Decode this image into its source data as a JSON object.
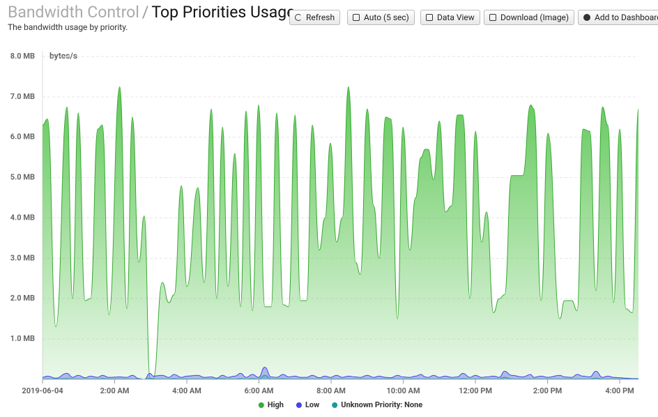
{
  "header": {
    "parent": "Bandwidth Control",
    "separator": "/",
    "title": "Top Priorities Usage",
    "subtitle": "The bandwidth usage by priority."
  },
  "buttons": [
    "Refresh",
    "Auto (5 sec)",
    "Data View",
    "Download (Image)",
    "Add to Dashboard"
  ],
  "chart_data": {
    "type": "area",
    "y_label": "bytes/s",
    "x": [
      0,
      0.14,
      0.37,
      0.68,
      0.83,
      0.99,
      1.18,
      1.33,
      1.53,
      1.66,
      1.84,
      2.14,
      2.34,
      2.49,
      2.67,
      2.82,
      2.98,
      3.07,
      3.32,
      3.5,
      3.65,
      3.85,
      4.0,
      4.31,
      4.48,
      4.68,
      4.83,
      4.99,
      5.14,
      5.33,
      5.49,
      5.64,
      5.82,
      5.99,
      6.16,
      6.34,
      6.49,
      6.67,
      6.82,
      7.0,
      7.15,
      7.32,
      7.48,
      7.67,
      7.83,
      7.98,
      8.15,
      8.31,
      8.48,
      8.68,
      8.81,
      9.0,
      9.18,
      9.33,
      9.51,
      9.66,
      9.84,
      9.99,
      10.18,
      10.34,
      10.49,
      10.61,
      10.69,
      10.84,
      11.0,
      11.17,
      11.34,
      11.5,
      11.65,
      11.85,
      12.0,
      12.17,
      12.31,
      12.5,
      12.66,
      12.81,
      13.0,
      13.31,
      13.53,
      13.62,
      13.82,
      14.01,
      14.34,
      14.47,
      14.67,
      14.82,
      14.98,
      15.17,
      15.34,
      15.52,
      15.67,
      15.83,
      16.0,
      16.17,
      16.35,
      16.52
    ],
    "series": [
      {
        "name": "High",
        "color": "#3aaa35",
        "values": [
          6.3,
          6.45,
          1.3,
          6.75,
          2.0,
          6.6,
          1.95,
          2.0,
          6.2,
          6.3,
          1.6,
          7.25,
          1.75,
          6.5,
          2.9,
          4.05,
          0.02,
          0.02,
          2.4,
          1.9,
          2.1,
          4.8,
          2.3,
          4.75,
          2.4,
          6.7,
          2.0,
          6.25,
          2.3,
          5.6,
          1.8,
          6.65,
          1.7,
          6.8,
          1.8,
          1.8,
          6.6,
          1.85,
          1.8,
          6.55,
          1.95,
          1.95,
          6.3,
          3.2,
          4.0,
          5.85,
          3.4,
          4.0,
          7.25,
          2.9,
          2.6,
          6.7,
          4.3,
          3.0,
          6.5,
          6.45,
          1.5,
          6.25,
          3.2,
          4.5,
          5.5,
          5.7,
          5.7,
          4.95,
          6.4,
          4.15,
          4.3,
          6.55,
          6.55,
          2.0,
          6.15,
          3.4,
          4.15,
          1.65,
          2.0,
          2.1,
          5.05,
          5.05,
          6.8,
          6.7,
          1.95,
          6.1,
          1.5,
          1.95,
          1.95,
          1.7,
          6.2,
          6.15,
          2.2,
          6.75,
          6.3,
          1.9,
          6.2,
          1.75,
          1.65,
          6.7
        ]
      },
      {
        "name": "Low",
        "color": "#4444ee",
        "values": [
          0.05,
          0.08,
          0.03,
          0.15,
          0.05,
          0.1,
          0.04,
          0.08,
          0.05,
          0.1,
          0.05,
          0.06,
          0.05,
          0.1,
          0.02,
          0.0,
          0.15,
          0.08,
          0.1,
          0.05,
          0.12,
          0.05,
          0.08,
          0.1,
          0.05,
          0.06,
          0.03,
          0.1,
          0.05,
          0.08,
          0.15,
          0.05,
          0.12,
          0.05,
          0.3,
          0.06,
          0.05,
          0.12,
          0.06,
          0.08,
          0.05,
          0.05,
          0.1,
          0.04,
          0.08,
          0.05,
          0.1,
          0.05,
          0.08,
          0.06,
          0.05,
          0.1,
          0.05,
          0.08,
          0.05,
          0.04,
          0.1,
          0.06,
          0.05,
          0.08,
          0.12,
          0.06,
          0.05,
          0.1,
          0.05,
          0.08,
          0.05,
          0.06,
          0.15,
          0.05,
          0.1,
          0.05,
          0.06,
          0.08,
          0.05,
          0.2,
          0.1,
          0.06,
          0.12,
          0.05,
          0.08,
          0.05,
          0.1,
          0.06,
          0.05,
          0.12,
          0.08,
          0.06,
          0.2,
          0.05,
          0.08,
          0.05,
          0.04,
          0.03,
          0.02,
          0.02
        ]
      },
      {
        "name": "Unknown Priority: None",
        "color": "#1a9a9a",
        "values": [
          0.01,
          0.01,
          0.01,
          0.02,
          0.01,
          0.01,
          0.01,
          0.01,
          0.01,
          0.02,
          0.01,
          0.01,
          0.01,
          0.01,
          0.01,
          0.0,
          0.03,
          0.01,
          0.01,
          0.01,
          0.02,
          0.01,
          0.01,
          0.01,
          0.01,
          0.01,
          0.01,
          0.02,
          0.01,
          0.01,
          0.02,
          0.01,
          0.02,
          0.01,
          0.1,
          0.01,
          0.01,
          0.02,
          0.01,
          0.01,
          0.01,
          0.01,
          0.01,
          0.01,
          0.01,
          0.01,
          0.01,
          0.01,
          0.01,
          0.01,
          0.01,
          0.01,
          0.01,
          0.01,
          0.01,
          0.01,
          0.01,
          0.01,
          0.01,
          0.01,
          0.01,
          0.01,
          0.01,
          0.01,
          0.01,
          0.01,
          0.01,
          0.01,
          0.02,
          0.01,
          0.01,
          0.01,
          0.01,
          0.01,
          0.01,
          0.05,
          0.01,
          0.01,
          0.01,
          0.01,
          0.01,
          0.01,
          0.01,
          0.01,
          0.01,
          0.01,
          0.01,
          0.01,
          0.03,
          0.01,
          0.01,
          0.01,
          0.01,
          0.01,
          0.01,
          0.01
        ]
      }
    ],
    "xlim": [
      0,
      16.52
    ],
    "xticks": [
      {
        "value": 0,
        "label": "2019-06-04"
      },
      {
        "value": 2,
        "label": "2:00 AM"
      },
      {
        "value": 4,
        "label": "4:00 AM"
      },
      {
        "value": 6,
        "label": "6:00 AM"
      },
      {
        "value": 8,
        "label": "8:00 AM"
      },
      {
        "value": 10,
        "label": "10:00 AM"
      },
      {
        "value": 12,
        "label": "12:00 PM"
      },
      {
        "value": 14,
        "label": "2:00 PM"
      },
      {
        "value": 16,
        "label": "4:00 PM"
      }
    ],
    "ylim": [
      0,
      8
    ],
    "yticks": [
      {
        "value": 1,
        "label": "1.0 MB"
      },
      {
        "value": 2,
        "label": "2.0 MB"
      },
      {
        "value": 3,
        "label": "3.0 MB"
      },
      {
        "value": 4,
        "label": "4.0 MB"
      },
      {
        "value": 5,
        "label": "5.0 MB"
      },
      {
        "value": 6,
        "label": "6.0 MB"
      },
      {
        "value": 7,
        "label": "7.0 MB"
      },
      {
        "value": 8,
        "label": "8.0 MB"
      }
    ],
    "grid": true,
    "legend": "bottom"
  }
}
